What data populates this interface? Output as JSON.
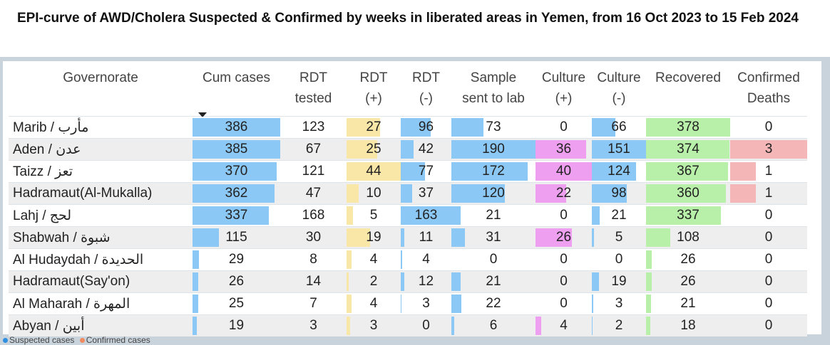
{
  "title": "EPI-curve of AWD/Cholera Suspected & Confirmed by weeks in liberated areas in Yemen, from 16 Oct 2023 to 15 Feb 2024",
  "legend": {
    "items": [
      "Suspected cases",
      "Confirmed cases"
    ],
    "colors": [
      "#2f8fe0",
      "#f08a60"
    ]
  },
  "colors": {
    "cum_cases": "#8cc8f5",
    "rdt_tested": "#ffffff",
    "rdt_pos": "#f9e7a8",
    "rdt_neg": "#8cc8f5",
    "sample": "#8cc8f5",
    "culture_pos": "#ef9ff0",
    "culture_neg": "#8cc8f5",
    "recovered": "#b9f0a9",
    "deaths": "#f4b6b6"
  },
  "columns": [
    {
      "key": "gov",
      "header": [
        "Governorate",
        ""
      ]
    },
    {
      "key": "cum_cases",
      "header": [
        "Cum cases",
        ""
      ]
    },
    {
      "key": "rdt_tested",
      "header": [
        "RDT",
        "tested"
      ]
    },
    {
      "key": "rdt_pos",
      "header": [
        "RDT",
        "(+)"
      ]
    },
    {
      "key": "rdt_neg",
      "header": [
        "RDT",
        "(-)"
      ]
    },
    {
      "key": "sample",
      "header": [
        "Sample",
        "sent to lab"
      ]
    },
    {
      "key": "culture_pos",
      "header": [
        "Culture",
        "(+)"
      ]
    },
    {
      "key": "culture_neg",
      "header": [
        "Culture",
        "(-)"
      ]
    },
    {
      "key": "recovered",
      "header": [
        "Recovered",
        ""
      ]
    },
    {
      "key": "deaths",
      "header": [
        "Confirmed",
        "Deaths"
      ]
    }
  ],
  "chart_data": {
    "type": "table",
    "title": "EPI-curve of AWD/Cholera Suspected & Confirmed by weeks in liberated areas in Yemen, from 16 Oct 2023 to 15 Feb 2024",
    "sort": "Cum cases descending",
    "bar_max": {
      "cum_cases": 386,
      "rdt_tested": 168,
      "rdt_pos": 44,
      "rdt_neg": 163,
      "sample": 190,
      "culture_pos": 40,
      "culture_neg": 151,
      "recovered": 378,
      "deaths": 3
    },
    "rows": [
      {
        "gov": "Marib / مأرب",
        "cum_cases": 386,
        "rdt_tested": 123,
        "rdt_pos": 27,
        "rdt_neg": 96,
        "sample": 73,
        "culture_pos": 0,
        "culture_neg": 66,
        "recovered": 378,
        "deaths": 0
      },
      {
        "gov": "Aden / عدن",
        "cum_cases": 385,
        "rdt_tested": 67,
        "rdt_pos": 25,
        "rdt_neg": 42,
        "sample": 190,
        "culture_pos": 36,
        "culture_neg": 151,
        "recovered": 374,
        "deaths": 3
      },
      {
        "gov": "Taizz / تعز",
        "cum_cases": 370,
        "rdt_tested": 121,
        "rdt_pos": 44,
        "rdt_neg": 77,
        "sample": 172,
        "culture_pos": 40,
        "culture_neg": 124,
        "recovered": 367,
        "deaths": 1
      },
      {
        "gov": "Hadramaut(Al-Mukalla)",
        "cum_cases": 362,
        "rdt_tested": 47,
        "rdt_pos": 10,
        "rdt_neg": 37,
        "sample": 120,
        "culture_pos": 22,
        "culture_neg": 98,
        "recovered": 360,
        "deaths": 1
      },
      {
        "gov": "Lahj / لحج",
        "cum_cases": 337,
        "rdt_tested": 168,
        "rdt_pos": 5,
        "rdt_neg": 163,
        "sample": 21,
        "culture_pos": 0,
        "culture_neg": 21,
        "recovered": 337,
        "deaths": 0
      },
      {
        "gov": "Shabwah / شبوة",
        "cum_cases": 115,
        "rdt_tested": 30,
        "rdt_pos": 19,
        "rdt_neg": 11,
        "sample": 31,
        "culture_pos": 26,
        "culture_neg": 5,
        "recovered": 108,
        "deaths": 0
      },
      {
        "gov": "Al Hudaydah / الحديدة",
        "cum_cases": 29,
        "rdt_tested": 8,
        "rdt_pos": 4,
        "rdt_neg": 4,
        "sample": 0,
        "culture_pos": 0,
        "culture_neg": 0,
        "recovered": 26,
        "deaths": 0
      },
      {
        "gov": "Hadramaut(Say'on)",
        "cum_cases": 26,
        "rdt_tested": 14,
        "rdt_pos": 2,
        "rdt_neg": 12,
        "sample": 21,
        "culture_pos": 0,
        "culture_neg": 19,
        "recovered": 26,
        "deaths": 0
      },
      {
        "gov": "Al Maharah / المهرة",
        "cum_cases": 25,
        "rdt_tested": 7,
        "rdt_pos": 4,
        "rdt_neg": 3,
        "sample": 22,
        "culture_pos": 0,
        "culture_neg": 3,
        "recovered": 21,
        "deaths": 0
      },
      {
        "gov": "Abyan / أبين",
        "cum_cases": 19,
        "rdt_tested": 3,
        "rdt_pos": 3,
        "rdt_neg": 0,
        "sample": 6,
        "culture_pos": 4,
        "culture_neg": 2,
        "recovered": 18,
        "deaths": 0
      }
    ]
  }
}
